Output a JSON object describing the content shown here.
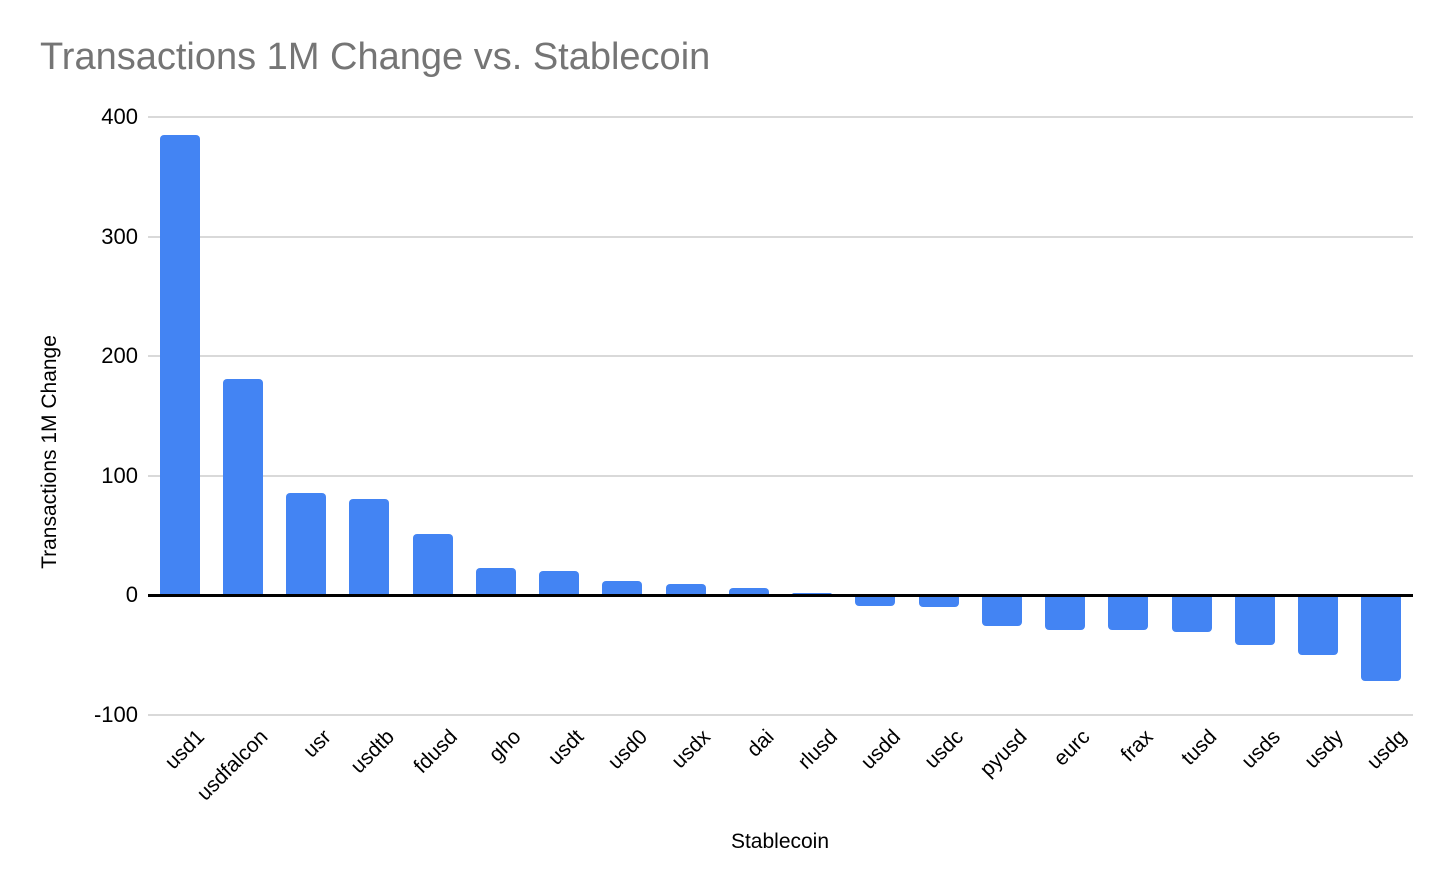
{
  "page": {
    "background": "#ffffff"
  },
  "chart_data": {
    "type": "bar",
    "title": "Transactions 1M Change vs. Stablecoin",
    "xlabel": "Stablecoin",
    "ylabel": "Transactions 1M Change",
    "categories": [
      "usd1",
      "usdfalcon",
      "usr",
      "usdtb",
      "fdusd",
      "gho",
      "usdt",
      "usd0",
      "usdx",
      "dai",
      "rlusd",
      "usdd",
      "usdc",
      "pyusd",
      "eurc",
      "frax",
      "tusd",
      "usds",
      "usdy",
      "usdg"
    ],
    "values": [
      385,
      181,
      85,
      80,
      51,
      23,
      20,
      12,
      9,
      6,
      2,
      -9,
      -10,
      -26,
      -29,
      -29,
      -31,
      -42,
      -50,
      -72
    ],
    "ylim": [
      -100,
      400
    ],
    "yticks": [
      400,
      300,
      200,
      100,
      0,
      -100
    ],
    "grid": true,
    "legend": "none",
    "bar_color": "#4384f3",
    "title_color": "#757575",
    "axis_line_color": "#000000",
    "gridline_color": "#d9d9d9",
    "tick_label_color": "#000000"
  }
}
